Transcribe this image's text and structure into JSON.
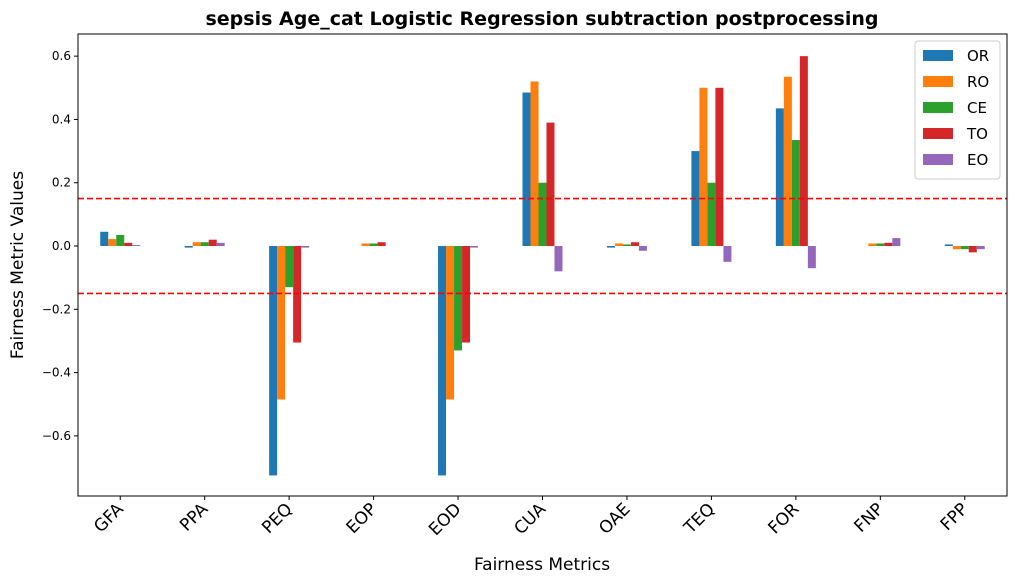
{
  "chart_data": {
    "type": "bar",
    "title": "sepsis Age_cat Logistic Regression subtraction postprocessing",
    "xlabel": "Fairness Metrics",
    "ylabel": "Fairness Metric Values",
    "categories": [
      "GFA",
      "PPA",
      "PEQ",
      "EOP",
      "EOD",
      "CUA",
      "OAE",
      "TEQ",
      "FOR",
      "FNP",
      "FPP"
    ],
    "series": [
      {
        "name": "OR",
        "color": "#1f77b4",
        "values": [
          0.045,
          -0.005,
          -0.725,
          0.0,
          -0.725,
          0.485,
          -0.005,
          0.3,
          0.435,
          0.0,
          0.005
        ]
      },
      {
        "name": "RO",
        "color": "#ff7f0e",
        "values": [
          0.022,
          0.012,
          -0.485,
          0.008,
          -0.485,
          0.52,
          0.008,
          0.5,
          0.535,
          0.008,
          -0.01
        ]
      },
      {
        "name": "CE",
        "color": "#2ca02c",
        "values": [
          0.035,
          0.012,
          -0.13,
          0.008,
          -0.33,
          0.2,
          0.005,
          0.2,
          0.335,
          0.008,
          -0.01
        ]
      },
      {
        "name": "TO",
        "color": "#d62728",
        "values": [
          0.01,
          0.02,
          -0.305,
          0.012,
          -0.305,
          0.39,
          0.012,
          0.5,
          0.6,
          0.01,
          -0.02
        ]
      },
      {
        "name": "EO",
        "color": "#9467bd",
        "values": [
          0.003,
          0.01,
          -0.005,
          0.0,
          -0.005,
          -0.08,
          -0.015,
          -0.05,
          -0.07,
          0.025,
          -0.01
        ]
      }
    ],
    "ylim": [
      -0.79,
      0.67
    ],
    "yticks": [
      0.6,
      0.4,
      0.2,
      0.0,
      -0.2,
      -0.4,
      -0.6
    ],
    "ytick_labels": [
      "0.6",
      "0.4",
      "0.2",
      "0.0",
      "−0.2",
      "−0.4",
      "−0.6"
    ],
    "reference_lines": [
      0.15,
      -0.15
    ],
    "reference_line_color": "#ff0000",
    "legend_position": "top-right",
    "grid": false
  }
}
